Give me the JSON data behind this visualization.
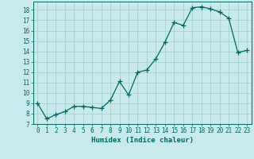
{
  "x": [
    0,
    1,
    2,
    3,
    4,
    5,
    6,
    7,
    8,
    9,
    10,
    11,
    12,
    13,
    14,
    15,
    16,
    17,
    18,
    19,
    20,
    21,
    22,
    23
  ],
  "y": [
    9.0,
    7.5,
    7.9,
    8.2,
    8.7,
    8.7,
    8.6,
    8.5,
    9.3,
    11.1,
    9.8,
    12.0,
    12.2,
    13.3,
    14.9,
    16.8,
    16.5,
    18.2,
    18.3,
    18.1,
    17.8,
    17.2,
    13.9,
    14.1
  ],
  "xlim": [
    -0.5,
    23.5
  ],
  "ylim": [
    7,
    18.8
  ],
  "yticks": [
    7,
    8,
    9,
    10,
    11,
    12,
    13,
    14,
    15,
    16,
    17,
    18
  ],
  "xticks": [
    0,
    1,
    2,
    3,
    4,
    5,
    6,
    7,
    8,
    9,
    10,
    11,
    12,
    13,
    14,
    15,
    16,
    17,
    18,
    19,
    20,
    21,
    22,
    23
  ],
  "xlabel": "Humidex (Indice chaleur)",
  "line_color": "#006666",
  "marker": "+",
  "bg_color": "#c8eaea",
  "grid_color": "#a0cccc"
}
